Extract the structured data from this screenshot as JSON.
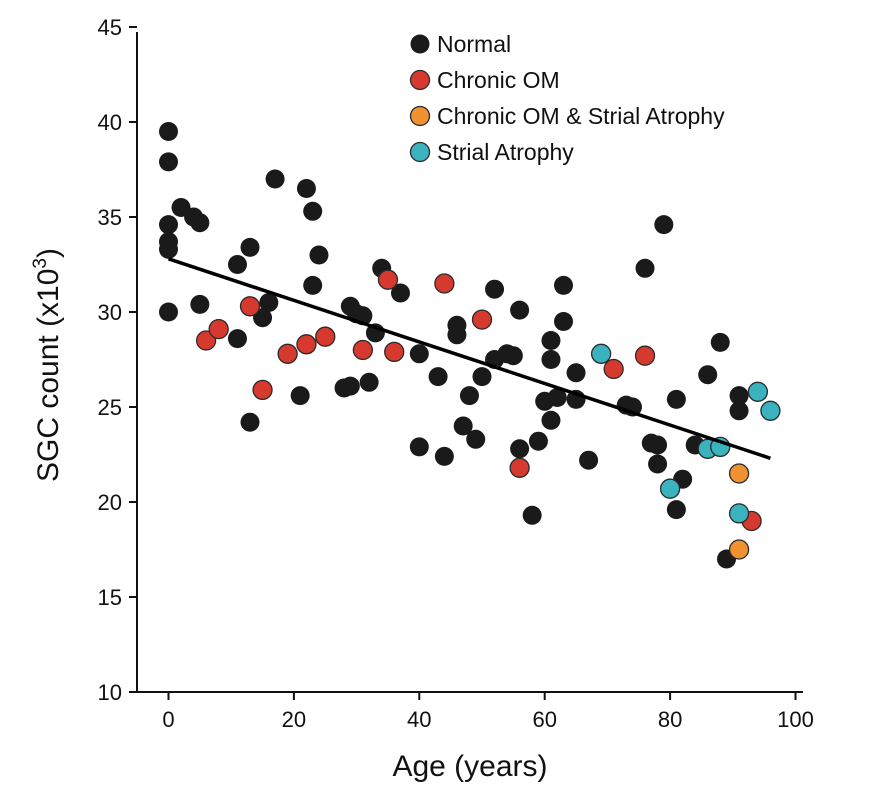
{
  "chart_data": {
    "type": "scatter",
    "xlabel": "Age (years)",
    "ylabel_main": "SGC count (x10",
    "ylabel_sup": "3",
    "ylabel_close": ")",
    "xlim": [
      -5,
      100
    ],
    "ylim": [
      10,
      45
    ],
    "xticks": [
      0,
      20,
      40,
      60,
      80,
      100
    ],
    "yticks": [
      10,
      15,
      20,
      25,
      30,
      35,
      40,
      45
    ],
    "legend_position": "top-right",
    "trendline": {
      "x": [
        0,
        96
      ],
      "y": [
        32.8,
        22.3
      ],
      "color": "#000000"
    },
    "series": [
      {
        "name": "Normal",
        "color": "#1a1a1a",
        "points": [
          [
            0,
            39.5
          ],
          [
            0,
            37.9
          ],
          [
            0,
            34.6
          ],
          [
            0,
            33.7
          ],
          [
            0,
            33.3
          ],
          [
            0,
            30.0
          ],
          [
            2,
            35.5
          ],
          [
            4,
            35.0
          ],
          [
            5,
            34.7
          ],
          [
            5,
            30.4
          ],
          [
            11,
            32.5
          ],
          [
            11,
            28.6
          ],
          [
            13,
            33.4
          ],
          [
            13,
            24.2
          ],
          [
            15,
            29.7
          ],
          [
            16,
            30.5
          ],
          [
            17,
            37.0
          ],
          [
            21,
            25.6
          ],
          [
            22,
            36.5
          ],
          [
            23,
            35.3
          ],
          [
            23,
            31.4
          ],
          [
            24,
            33.0
          ],
          [
            28,
            26.0
          ],
          [
            29,
            30.3
          ],
          [
            29,
            26.1
          ],
          [
            30,
            29.9
          ],
          [
            31,
            29.8
          ],
          [
            32,
            26.3
          ],
          [
            33,
            28.9
          ],
          [
            34,
            32.3
          ],
          [
            37,
            31.0
          ],
          [
            40,
            27.8
          ],
          [
            40,
            22.9
          ],
          [
            43,
            26.6
          ],
          [
            44,
            22.4
          ],
          [
            46,
            29.3
          ],
          [
            46,
            28.8
          ],
          [
            47,
            24.0
          ],
          [
            48,
            25.6
          ],
          [
            49,
            23.3
          ],
          [
            50,
            26.6
          ],
          [
            52,
            31.2
          ],
          [
            52,
            27.5
          ],
          [
            54,
            27.8
          ],
          [
            55,
            27.7
          ],
          [
            56,
            30.1
          ],
          [
            56,
            22.8
          ],
          [
            58,
            19.3
          ],
          [
            59,
            23.2
          ],
          [
            60,
            25.3
          ],
          [
            61,
            28.5
          ],
          [
            61,
            27.5
          ],
          [
            61,
            24.3
          ],
          [
            62,
            25.5
          ],
          [
            63,
            31.4
          ],
          [
            63,
            29.5
          ],
          [
            65,
            26.8
          ],
          [
            65,
            25.4
          ],
          [
            67,
            22.2
          ],
          [
            73,
            25.1
          ],
          [
            74,
            25.0
          ],
          [
            76,
            32.3
          ],
          [
            77,
            23.1
          ],
          [
            78,
            23.0
          ],
          [
            78,
            22.0
          ],
          [
            79,
            34.6
          ],
          [
            81,
            25.4
          ],
          [
            81,
            19.6
          ],
          [
            82,
            21.2
          ],
          [
            84,
            23.0
          ],
          [
            86,
            26.7
          ],
          [
            88,
            28.4
          ],
          [
            89,
            17.0
          ],
          [
            91,
            25.6
          ],
          [
            91,
            24.8
          ]
        ]
      },
      {
        "name": "Chronic OM",
        "color": "#d63a2f",
        "points": [
          [
            6,
            28.5
          ],
          [
            8,
            29.1
          ],
          [
            13,
            30.3
          ],
          [
            15,
            25.9
          ],
          [
            19,
            27.8
          ],
          [
            22,
            28.3
          ],
          [
            25,
            28.7
          ],
          [
            31,
            28.0
          ],
          [
            35,
            31.7
          ],
          [
            36,
            27.9
          ],
          [
            44,
            31.5
          ],
          [
            50,
            29.6
          ],
          [
            56,
            21.8
          ],
          [
            71,
            27.0
          ],
          [
            76,
            27.7
          ],
          [
            93,
            19.0
          ]
        ]
      },
      {
        "name": "Chronic OM & Strial Atrophy",
        "color": "#f0922f",
        "points": [
          [
            91,
            21.5
          ],
          [
            91,
            17.5
          ]
        ]
      },
      {
        "name": "Strial Atrophy",
        "color": "#3bb3bf",
        "points": [
          [
            69,
            27.8
          ],
          [
            80,
            20.7
          ],
          [
            86,
            22.8
          ],
          [
            88,
            22.9
          ],
          [
            91,
            19.4
          ],
          [
            94,
            25.8
          ],
          [
            96,
            24.8
          ]
        ]
      }
    ]
  }
}
